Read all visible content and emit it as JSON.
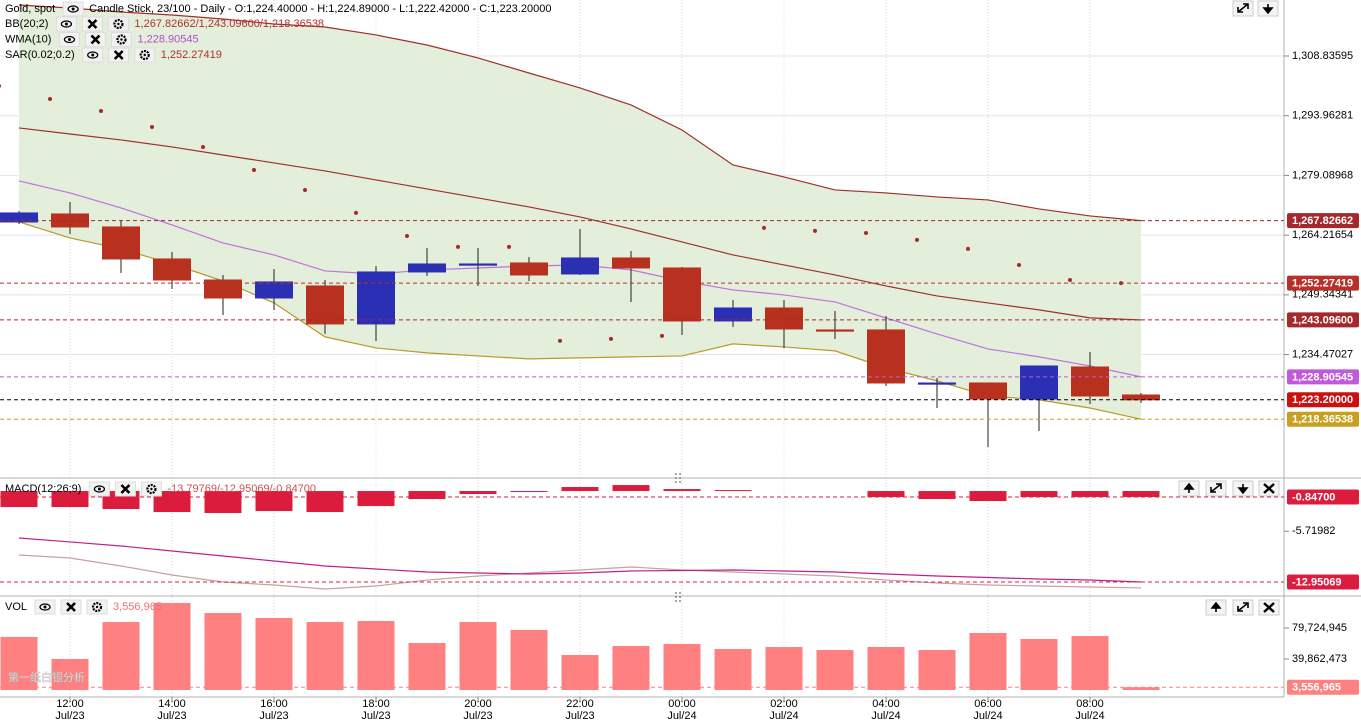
{
  "chart_data": [
    {
      "type": "candlestick",
      "title": "Gold, spot",
      "subtitle": "Candle Stick, 23/100 - Daily - O:1,224.40000 - H:1,224.89000 - L:1,222.42000 - C:1,223.20000",
      "categories": [
        null,
        "12:00",
        null,
        "14:00",
        null,
        "16:00",
        null,
        "18:00",
        null,
        "20:00",
        null,
        "22:00",
        null,
        "00:00",
        null,
        "02:00",
        null,
        "04:00",
        null,
        "06:00",
        null,
        "08:00",
        null
      ],
      "category_dates": [
        null,
        "Jul/23",
        null,
        "Jul/23",
        null,
        "Jul/23",
        null,
        "Jul/23",
        null,
        "Jul/23",
        null,
        "Jul/23",
        null,
        "Jul/24",
        null,
        "Jul/24",
        null,
        "Jul/24",
        null,
        "Jul/24",
        null,
        "Jul/24",
        null
      ],
      "open": [
        1267.49,
        1269.49,
        1266.25,
        1258.28,
        1253.04,
        1248.56,
        1251.55,
        1242.09,
        1255.04,
        1256.78,
        1257.28,
        1254.54,
        1258.53,
        1256.03,
        1242.83,
        1246.07,
        1240.6,
        1240.6,
        1227.14,
        1227.39,
        1223.4,
        1231.37,
        1224.4
      ],
      "high": [
        1270.24,
        1272.48,
        1267.99,
        1260.02,
        1254.29,
        1255.78,
        1253.04,
        1256.53,
        1261.02,
        1261.02,
        1258.78,
        1265.75,
        1260.27,
        1256.28,
        1248.07,
        1248.07,
        1245.33,
        1244.08,
        1228.63,
        1227.39,
        1231.62,
        1235.11,
        1224.89
      ],
      "low": [
        1267.0,
        1264.51,
        1254.79,
        1250.8,
        1244.33,
        1245.57,
        1239.6,
        1237.86,
        1254.04,
        1251.55,
        1252.79,
        1254.29,
        1247.57,
        1239.35,
        1241.34,
        1236.11,
        1238.35,
        1226.64,
        1221.16,
        1211.45,
        1215.43,
        1222.16,
        1222.42
      ],
      "close": [
        1269.74,
        1266.25,
        1258.28,
        1253.04,
        1248.56,
        1252.55,
        1242.09,
        1255.04,
        1257.03,
        1257.03,
        1254.29,
        1258.53,
        1256.03,
        1242.83,
        1246.07,
        1240.84,
        1240.35,
        1227.39,
        1227.39,
        1223.4,
        1231.62,
        1224.15,
        1223.2
      ],
      "up_color": "#2b2fb3",
      "down_color": "#b8301e",
      "indicators": [
        {
          "name": "BB(20;2)",
          "value_text": "1,267.82662/1,243.09600/1,218.36538",
          "text_color": "#b03030",
          "fill": "#e3efdb",
          "style": "line",
          "series": [
            {
              "color": "#a0302c",
              "values": [
                1321.54,
                1320.79,
                1319.79,
                1319.04,
                1318.05,
                1316.8,
                1316.06,
                1314.07,
                1311.57,
                1308.34,
                1304.6,
                1300.87,
                1296.63,
                1290.41,
                1281.69,
                1278.71,
                1275.47,
                1274.72,
                1273.73,
                1272.98,
                1270.74,
                1268.99,
                1267.82662
              ]
            },
            {
              "color": "#a0302c",
              "values": [
                1290.91,
                1289.41,
                1287.92,
                1286.18,
                1284.18,
                1282.19,
                1280.2,
                1277.96,
                1275.72,
                1273.47,
                1271.23,
                1268.74,
                1265.75,
                1262.52,
                1259.28,
                1256.79,
                1254.3,
                1251.56,
                1249.07,
                1247.33,
                1245.59,
                1243.6,
                1243.096
              ]
            },
            {
              "color": "#b89a2a",
              "values": [
                1267.49,
                1263.52,
                1260.78,
                1257.03,
                1252.79,
                1247.33,
                1238.87,
                1236.11,
                1234.88,
                1234.13,
                1233.39,
                1233.64,
                1233.89,
                1234.13,
                1237.12,
                1236.37,
                1235.38,
                1231.15,
                1227.91,
                1224.17,
                1223.18,
                1221.16,
                1218.36538
              ]
            }
          ]
        },
        {
          "name": "WMA(10)",
          "value_text": "1,228.90545",
          "text_color": "#b050c8",
          "style": "line",
          "series": [
            {
              "color": "#c070e0",
              "values": [
                1277.71,
                1274.72,
                1270.99,
                1266.75,
                1262.27,
                1259.28,
                1255.3,
                1254.54,
                1255.55,
                1256.03,
                1256.53,
                1256.78,
                1255.55,
                1252.79,
                1250.57,
                1249.32,
                1247.57,
                1243.6,
                1239.6,
                1235.87,
                1233.89,
                1231.64,
                1228.90545
              ]
            }
          ]
        },
        {
          "name": "SAR(0.02;0.2)",
          "value_text": "1,252.27419",
          "text_color": "#b03030",
          "style": "dots",
          "series": [
            {
              "color": "#a52a2a",
              "values": [
                1301.36,
                1298.13,
                1295.14,
                1291.15,
                1286.18,
                1280.45,
                1275.47,
                1269.75,
                1264.01,
                1261.28,
                1261.28,
                1237.87,
                1238.36,
                1239.11,
                null,
                1266.01,
                1265.26,
                1264.76,
                1263.02,
                1260.78,
                1256.78,
                1253.04,
                1252.27419
              ]
            }
          ]
        }
      ],
      "ylim": [
        1203.97,
        1322.78
      ],
      "yticks": [
        {
          "value": 1308.83595,
          "label": "1,308.83595"
        },
        {
          "value": 1293.96281,
          "label": "1,293.96281"
        },
        {
          "value": 1279.08968,
          "label": "1,279.08968"
        },
        {
          "value": 1264.21654,
          "label": "1,264.21654"
        },
        {
          "value": 1249.34341,
          "label": "1,249.34341"
        },
        {
          "value": 1234.47027,
          "label": "1,234.47027"
        }
      ],
      "grid": true,
      "price_tags": [
        {
          "value": 1267.82662,
          "label": "1,267.82662",
          "color": "#a4282c"
        },
        {
          "value": 1252.27419,
          "label": "1,252.27419",
          "color": "#b8302a"
        },
        {
          "value": 1243.096,
          "label": "1,243.09600",
          "color": "#a4282c"
        },
        {
          "value": 1228.90545,
          "label": "1,228.90545",
          "color": "#c05ad8"
        },
        {
          "value": 1223.2,
          "label": "1,223.20000",
          "color": "#cc1010",
          "line_color": "#000000"
        },
        {
          "value": 1218.36538,
          "label": "1,218.36538",
          "color": "#c8a020"
        }
      ]
    },
    {
      "type": "macd",
      "title": "MACD(12;26;9)",
      "value_text": "-13.79769/-12.95069/-0.84700",
      "text_color": "#d05050",
      "series": [
        {
          "style": "bar",
          "color": "#dc1c3c",
          "values": [
            -2.28,
            -2.28,
            -2.56,
            -2.99,
            -3.13,
            -2.85,
            -2.99,
            -2.14,
            -1.14,
            -0.43,
            -0.14,
            0.57,
            0.85,
            0.28,
            0.14,
            0,
            0,
            -0.85,
            -1.14,
            -1.42,
            -0.85,
            -0.85,
            -0.847
          ]
        },
        {
          "style": "line",
          "color": "#c8a0a0",
          "values": [
            -9.11,
            -9.53,
            -10.67,
            -11.95,
            -12.95,
            -13.38,
            -13.95,
            -13.52,
            -12.67,
            -12.1,
            -11.67,
            -11.24,
            -10.81,
            -11.24,
            -11.53,
            -11.81,
            -12.1,
            -12.67,
            -13.09,
            -13.38,
            -13.52,
            -13.66,
            -13.79769
          ]
        },
        {
          "style": "line",
          "color": "#c0208c",
          "values": [
            -6.69,
            -7.25,
            -7.82,
            -8.54,
            -9.25,
            -9.96,
            -10.67,
            -11.1,
            -11.53,
            -11.67,
            -11.81,
            -11.67,
            -11.38,
            -11.31,
            -11.24,
            -11.38,
            -11.53,
            -11.81,
            -12.1,
            -12.31,
            -12.52,
            -12.67,
            -12.95069
          ]
        }
      ],
      "ylim": [
        -14.8,
        1.57
      ],
      "yticks": [
        -5.71982
      ],
      "grid": false,
      "price_tags": [
        {
          "value": -0.847,
          "label": "-0.84700",
          "color": "#dc1c3c"
        },
        {
          "value": -12.95069,
          "label": "-12.95069",
          "color": "#dc1c3c"
        }
      ]
    },
    {
      "type": "bar",
      "title": "VOL",
      "value_text": "3,556,965",
      "text_color": "#f07070",
      "color": "#ff8080",
      "values": [
        68200000,
        39900000,
        87400000,
        111900000,
        99000000,
        92600000,
        87400000,
        88700000,
        60400000,
        87400000,
        77200000,
        45000000,
        56600000,
        59200000,
        52700000,
        55300000,
        51400000,
        55300000,
        51400000,
        73300000,
        65600000,
        69400000,
        3556965
      ],
      "ylim": [
        -9000000,
        118300000
      ],
      "yticks": [
        {
          "value": 79724945,
          "label": "79,724,945"
        },
        {
          "value": 39862473,
          "label": "39,862,473"
        }
      ],
      "grid": false,
      "price_tags": [
        {
          "value": 3556965,
          "label": "3,556,965",
          "color": "#ff8080"
        }
      ],
      "watermark": "第一纸白银分析"
    }
  ]
}
